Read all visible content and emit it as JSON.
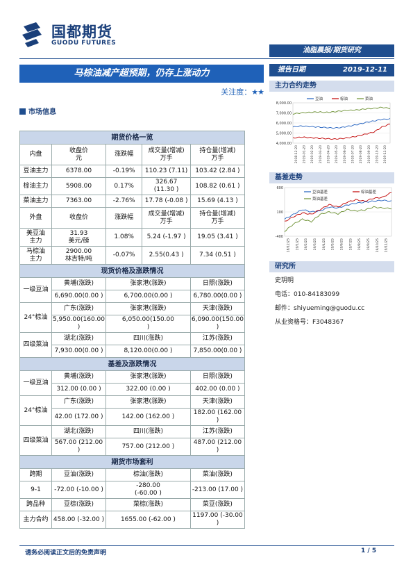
{
  "brand": {
    "name_cn": "国都期货",
    "name_en": "GUODU FUTURES",
    "colors": {
      "primary": "#1f4e8f",
      "accent": "#1f61b8"
    }
  },
  "header": {
    "doc_type": "油脂晨报/期货研究",
    "title": "马棕油减产超预期，仍存上涨动力",
    "focus_label": "关注度：",
    "focus_stars": "★★",
    "report_date_label": "报告日期",
    "report_date": "2019-12-11"
  },
  "market_info_heading": "市场信息",
  "futures": {
    "title": "期货价格一览",
    "domestic_headers": [
      "内盘",
      "收盘价\n元",
      "涨跌幅",
      "成交量(增减)\n万手",
      "持仓量(增减)\n万手"
    ],
    "domestic_rows": [
      [
        "豆油主力",
        "6378.00",
        "-0.19%",
        "110.23 (7.11)",
        "103.42 (2.84 )"
      ],
      [
        "棕油主力",
        "5908.00",
        "0.17%",
        "326.67\n(11.30 )",
        "108.82 (0.61 )"
      ],
      [
        "菜油主力",
        "7363.00",
        "-2.76%",
        "17.78 (-0.08 )",
        "15.69 (4.13 )"
      ]
    ],
    "foreign_headers": [
      "外盘",
      "收盘价",
      "涨跌幅",
      "成交量(增减)\n万手",
      "持仓量(增减)\n万手"
    ],
    "foreign_rows": [
      [
        "美豆油\n主力",
        "31.93\n美元/磅",
        "1.08%",
        "5.24 (-1.97 )",
        "19.05 (3.41 )"
      ],
      [
        "马棕油\n主力",
        "2900.00\n林吉特/吨",
        "-0.07%",
        "2.55(0.43 )",
        "7.34 (0.51 )"
      ]
    ]
  },
  "spot": {
    "title": "现货价格及涨跌情况",
    "groups": [
      {
        "name": "一级豆油",
        "regions": [
          "黄埔(涨跌)",
          "张家港(涨跌)",
          "日照(涨跌)"
        ],
        "values": [
          "6,690.00(0.00 )",
          "6,700.00(0.00 )",
          "6,780.00(0.00 )"
        ]
      },
      {
        "name": "24°棕油",
        "regions": [
          "广东(涨跌)",
          "张家港(涨跌)",
          "天津(涨跌)"
        ],
        "values": [
          "5,950.00(160.00 )",
          "6,050.00(150.00\n)",
          "6,090.00(150.00 )"
        ]
      },
      {
        "name": "四级菜油",
        "regions": [
          "湖北(涨跌)",
          "四川(涨跌)",
          "江苏(涨跌)"
        ],
        "values": [
          "7,930.00(0.00 )",
          "8,120.00(0.00 )",
          "7,850.00(0.00 )"
        ]
      }
    ]
  },
  "basis": {
    "title": "基差及涨跌情况",
    "groups": [
      {
        "name": "一级豆油",
        "regions": [
          "黄埔(涨跌)",
          "张家港(涨跌)",
          "日照(涨跌)"
        ],
        "values": [
          "312.00 (0.00 )",
          "322.00 (0.00 )",
          "402.00 (0.00 )"
        ]
      },
      {
        "name": "24°棕油",
        "regions": [
          "广东(涨跌)",
          "张家港(涨跌)",
          "天津(涨跌)"
        ],
        "values": [
          "42.00 (172.00 )",
          "142.00 (162.00 )",
          "182.00 (162.00 )"
        ]
      },
      {
        "name": "四级菜油",
        "regions": [
          "湖北(涨跌)",
          "四川(涨跌)",
          "江苏(涨跌)"
        ],
        "values": [
          "567.00 (212.00 )",
          "757.00 (212.00 )",
          "487.00 (212.00 )"
        ]
      }
    ]
  },
  "arbitrage": {
    "title": "期货市场套利",
    "row1_headers": [
      "跨期",
      "豆油(涨跌)",
      "棕油(涨跌)",
      "菜油(涨跌)"
    ],
    "row1_values": [
      "9-1",
      "-72.00 (-10.00 )",
      "-280.00\n(-60.00 )",
      "-213.00   (17.00 )"
    ],
    "row2_headers": [
      "跨品种",
      "豆棕(涨跌)",
      "菜棕(涨跌)",
      "菜豆(涨跌)"
    ],
    "row2_values": [
      "主力合约",
      "458.00 (-32.00 )",
      "1655.00 (-62.00 )",
      "1197.00 (-30.00 )"
    ]
  },
  "side": {
    "chart1_title": "主力合约走势",
    "chart2_title": "基差走势",
    "research_title": "研究所",
    "analyst": "史玥明",
    "phone": "电话：010-84183099",
    "email": "邮件：shiyueming@guodu.cc",
    "license": "从业资格号：F3048367"
  },
  "chart_data": [
    {
      "type": "line",
      "title": "",
      "legend": "top",
      "ylim": [
        4000,
        8000
      ],
      "y_ticks": [
        "4,000.00",
        "5,000.00",
        "6,000.00",
        "7,000.00",
        "8,000.00"
      ],
      "x_ticks": [
        "2018-12-20",
        "2019-01-20",
        "2019-02-20",
        "2019-03-20",
        "2019-04-20",
        "2019-05-20",
        "2019-06-20",
        "2019-07-20",
        "2019-08-20",
        "2019-09-20",
        "2019-10-20",
        "2019-11-20"
      ],
      "series": [
        {
          "name": "豆油",
          "color": "#1f5fbf",
          "values": [
            5600,
            5700,
            5650,
            5600,
            5550,
            5500,
            5550,
            5700,
            5850,
            6050,
            6200,
            6350,
            6400
          ]
        },
        {
          "name": "棕油",
          "color": "#c00000",
          "values": [
            4500,
            4600,
            4550,
            4500,
            4450,
            4400,
            4450,
            4550,
            4700,
            4900,
            5100,
            5600,
            5900
          ]
        },
        {
          "name": "菜油",
          "color": "#6a8f2f",
          "values": [
            6900,
            7000,
            7050,
            7100,
            7050,
            7100,
            7200,
            7250,
            7300,
            7400,
            7450,
            7550,
            7450
          ]
        }
      ]
    },
    {
      "type": "line",
      "title": "",
      "legend": "top",
      "ylim": [
        -400,
        600
      ],
      "y_ticks": [
        "-400",
        "100",
        "600"
      ],
      "x_ticks": [
        "18/12/25",
        "19/1/25",
        "19/2/25",
        "19/3/25",
        "19/4/25",
        "19/5/25",
        "19/6/25",
        "19/7/25",
        "19/8/25",
        "19/9/25",
        "19/10/25",
        "19/11/25"
      ],
      "series": [
        {
          "name": "豆油基差",
          "color": "#1f5fbf",
          "values": [
            -50,
            50,
            150,
            100,
            120,
            200,
            180,
            240,
            280,
            300,
            320,
            340,
            320
          ]
        },
        {
          "name": "棕油基差",
          "color": "#c00000",
          "values": [
            -100,
            0,
            80,
            50,
            150,
            250,
            200,
            300,
            350,
            320,
            380,
            400,
            500
          ]
        },
        {
          "name": "菜油基差",
          "color": "#6a8f2f",
          "values": [
            -300,
            -150,
            -50,
            -100,
            50,
            100,
            60,
            150,
            120,
            140,
            200,
            180,
            170
          ]
        }
      ]
    }
  ],
  "footer": {
    "disclaimer": "请务必阅读正文后的免责声明",
    "page": "1 / 5"
  }
}
